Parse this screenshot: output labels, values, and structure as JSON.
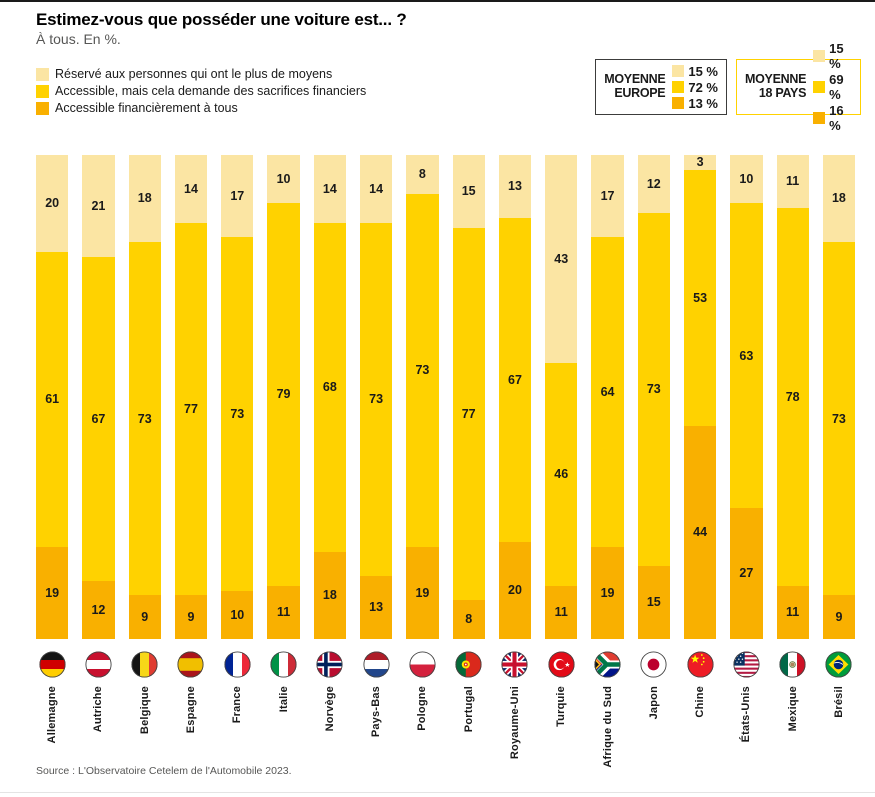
{
  "page": {
    "title": "Estimez-vous que posséder une voiture est... ?",
    "subtitle": "À tous. En %.",
    "source": "Source : L'Observatoire Cetelem de l'Automobile 2023."
  },
  "colors": {
    "cream": "#FBE5A3",
    "yellow": "#FFD200",
    "orange": "#F9B000",
    "avg_border_dark": "#3c3c3b",
    "avg_border_yellow": "#FFD200"
  },
  "legend": {
    "items": [
      {
        "key": "cream",
        "label": "Réservé aux personnes qui ont le plus de moyens"
      },
      {
        "key": "yellow",
        "label": "Accessible, mais cela demande des sacrifices financiers"
      },
      {
        "key": "orange",
        "label": "Accessible financièrement à tous"
      }
    ]
  },
  "averages": [
    {
      "title_line1": "MOYENNE",
      "title_line2": "EUROPE",
      "values": [
        "15 %",
        "72 %",
        "13 %"
      ]
    },
    {
      "title_line1": "MOYENNE",
      "title_line2": "18 PAYS",
      "values": [
        "15 %",
        "69 %",
        "16 %"
      ]
    }
  ],
  "chart_data": {
    "type": "bar",
    "stacked": true,
    "unit": "%",
    "ylim": [
      0,
      100
    ],
    "grid": false,
    "legend_position": "top-left",
    "title": "Estimez-vous que posséder une voiture est... ?",
    "subtitle": "À tous. En %.",
    "categories": [
      "Allemagne",
      "Autriche",
      "Belgique",
      "Espagne",
      "France",
      "Italie",
      "Norvège",
      "Pays-Bas",
      "Pologne",
      "Portugal",
      "Royaume-Uni",
      "Turquie",
      "Afrique du Sud",
      "Japon",
      "Chine",
      "États-Unis",
      "Mexique",
      "Brésil"
    ],
    "slugs": [
      "de",
      "at",
      "be",
      "es",
      "fr",
      "it",
      "no",
      "nl",
      "pl",
      "pt",
      "gb",
      "tr",
      "za",
      "jp",
      "cn",
      "us",
      "mx",
      "br"
    ],
    "series": [
      {
        "key": "reserve",
        "name": "Réservé aux personnes qui ont le plus de moyens",
        "color_key": "cream",
        "values": [
          20,
          21,
          18,
          14,
          17,
          10,
          14,
          14,
          8,
          15,
          13,
          43,
          17,
          12,
          3,
          10,
          11,
          18
        ]
      },
      {
        "key": "sacrifices",
        "name": "Accessible, mais cela demande des sacrifices financiers",
        "color_key": "yellow",
        "values": [
          61,
          67,
          73,
          77,
          73,
          79,
          68,
          73,
          73,
          77,
          67,
          46,
          64,
          73,
          53,
          63,
          78,
          73
        ]
      },
      {
        "key": "accessible",
        "name": "Accessible financièrement à tous",
        "color_key": "orange",
        "values": [
          19,
          12,
          9,
          9,
          10,
          11,
          18,
          13,
          19,
          8,
          20,
          11,
          19,
          15,
          44,
          27,
          11,
          9
        ]
      }
    ],
    "averages": {
      "europe": {
        "reserve": 15,
        "sacrifices": 72,
        "accessible": 13
      },
      "pays18": {
        "reserve": 15,
        "sacrifices": 69,
        "accessible": 16
      }
    }
  }
}
